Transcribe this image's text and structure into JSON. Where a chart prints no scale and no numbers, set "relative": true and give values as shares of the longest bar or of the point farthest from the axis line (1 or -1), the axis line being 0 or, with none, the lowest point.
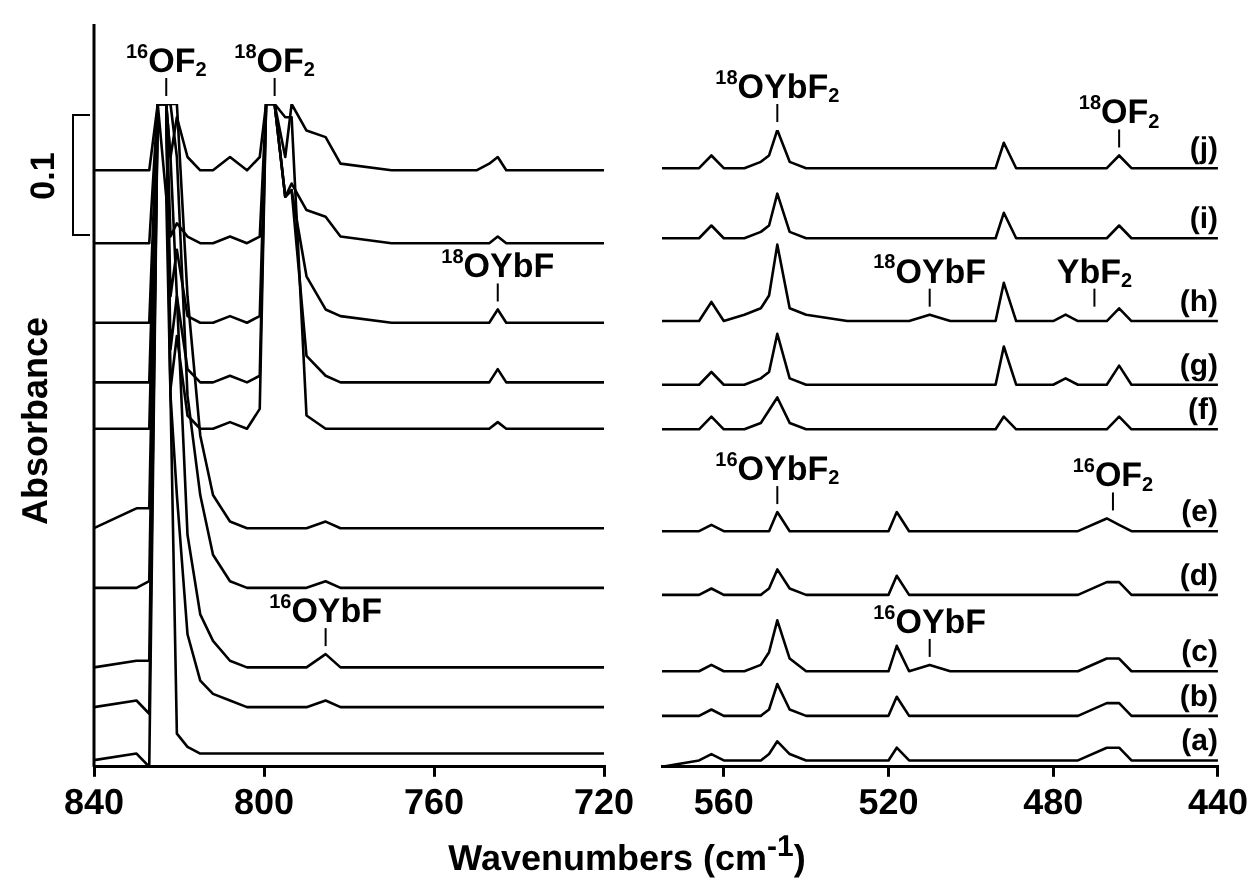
{
  "chart_data": [
    {
      "type": "line",
      "relative": true,
      "ylabel": "Absorbance",
      "xlabel": "Wavenumbers (cm$^{-1}$)",
      "xlim": [
        840,
        720
      ],
      "xticks": [
        840,
        800,
        760,
        720
      ],
      "annotations": [
        "0.1",
        {
          "text": "$^{16}$OF$_{2}$",
          "x": 823,
          "y": 1
        },
        {
          "text": "$^{18}$OF$_{2}$",
          "x": 797.5,
          "y": 1
        },
        {
          "text": "$^{18}$OYbF",
          "x": 745,
          "y": 0.69
        },
        {
          "text": "$^{16}$OYbF",
          "x": 785.5,
          "y": 0.17
        }
      ],
      "x": [
        840,
        830,
        827,
        825,
        823,
        822,
        820.5,
        818,
        815,
        812,
        808,
        804,
        801,
        799.5,
        797.5,
        795,
        793.5,
        790,
        785.5,
        782,
        770,
        760,
        750,
        747,
        745,
        743,
        720
      ],
      "series": [
        {
          "color": "#000000",
          "values": [
            0.9,
            0.9,
            0.9,
            1,
            1,
            0.92,
            0.98,
            0.92,
            0.9,
            0.9,
            0.92,
            0.9,
            0.92,
            1,
            1,
            0.92,
            1,
            0.96,
            0.95,
            0.91,
            0.9,
            0.9,
            0.9,
            0.91,
            0.92,
            0.9,
            0.9
          ]
        },
        {
          "color": "#000000",
          "values": [
            0.79,
            0.79,
            0.79,
            1,
            1,
            0.8,
            0.82,
            0.8,
            0.79,
            0.79,
            0.8,
            0.79,
            0.8,
            1,
            1,
            0.86,
            0.88,
            0.84,
            0.83,
            0.8,
            0.79,
            0.79,
            0.79,
            0.79,
            0.8,
            0.79,
            0.79
          ]
        },
        {
          "color": "#000000",
          "values": [
            0.67,
            0.67,
            0.67,
            1,
            1,
            0.71,
            0.78,
            0.68,
            0.67,
            0.67,
            0.68,
            0.67,
            0.68,
            1,
            1,
            0.86,
            0.87,
            0.74,
            0.69,
            0.68,
            0.67,
            0.67,
            0.67,
            0.67,
            0.69,
            0.67,
            0.67
          ]
        },
        {
          "color": "#000000",
          "values": [
            0.58,
            0.58,
            0.58,
            1,
            1,
            0.63,
            0.71,
            0.6,
            0.58,
            0.58,
            0.59,
            0.58,
            0.59,
            1,
            1,
            0.86,
            0.87,
            0.62,
            0.59,
            0.58,
            0.58,
            0.58,
            0.58,
            0.58,
            0.6,
            0.58,
            0.58
          ]
        },
        {
          "color": "#000000",
          "values": [
            0.51,
            0.51,
            0.51,
            1,
            1,
            0.57,
            0.65,
            0.53,
            0.51,
            0.51,
            0.52,
            0.51,
            0.54,
            1,
            1,
            0.98,
            0.98,
            0.53,
            0.51,
            0.51,
            0.51,
            0.51,
            0.51,
            0.51,
            0.52,
            0.51,
            0.51
          ]
        },
        {
          "color": "#000000",
          "values": [
            0.36,
            0.39,
            0.39,
            1,
            1,
            1,
            1,
            0.71,
            0.5,
            0.41,
            0.37,
            0.36,
            0.36,
            0.36,
            0.36,
            0.36,
            0.36,
            0.36,
            0.37,
            0.36,
            0.36,
            0.36,
            0.36,
            0.36,
            0.36,
            0.36,
            0.36
          ]
        },
        {
          "color": "#000000",
          "values": [
            0.27,
            0.27,
            0.28,
            1,
            1,
            1,
            0.92,
            0.56,
            0.41,
            0.32,
            0.28,
            0.27,
            0.27,
            0.27,
            0.27,
            0.27,
            0.27,
            0.27,
            0.28,
            0.27,
            0.27,
            0.27,
            0.27,
            0.27,
            0.27,
            0.27,
            0.27
          ]
        },
        {
          "color": "#000000",
          "values": [
            0.15,
            0.16,
            0.16,
            1,
            1,
            0.92,
            0.71,
            0.35,
            0.23,
            0.19,
            0.16,
            0.15,
            0.15,
            0.15,
            0.15,
            0.15,
            0.15,
            0.15,
            0.17,
            0.15,
            0.15,
            0.15,
            0.15,
            0.15,
            0.15,
            0.15,
            0.15
          ]
        },
        {
          "color": "#000000",
          "values": [
            0.09,
            0.1,
            0.08,
            1,
            0.86,
            0.56,
            0.41,
            0.2,
            0.13,
            0.11,
            0.1,
            0.09,
            0.09,
            0.09,
            0.09,
            0.09,
            0.09,
            0.09,
            0.1,
            0.09,
            0.09,
            0.09,
            0.09,
            0.09,
            0.09,
            0.09,
            0.09
          ]
        },
        {
          "color": "#000000",
          "values": [
            0.01,
            0.02,
            0,
            1,
            1,
            0.56,
            0.05,
            0.03,
            0.02,
            0.02,
            0.02,
            0.02,
            0.02,
            0.02,
            0.02,
            0.02,
            0.02,
            0.02,
            0.02,
            0.02,
            0.02,
            0.02,
            0.02,
            0.02,
            0.02,
            0.02,
            0.02
          ]
        }
      ]
    },
    {
      "type": "line",
      "relative": true,
      "legend": "right",
      "xlim": [
        575,
        440
      ],
      "xticks": [
        560,
        520,
        480,
        440
      ],
      "annotations": [
        {
          "text": "$^{18}$OYbF$_{2}$",
          "x": 547,
          "y": 1
        },
        {
          "text": "$^{18}$OF$_{2}$",
          "x": 464,
          "y": 0.96
        },
        {
          "text": "$^{18}$OYbF",
          "x": 510,
          "y": 0.71
        },
        {
          "text": "YbF$_{2}$",
          "x": 470,
          "y": 0.71
        },
        {
          "text": "$^{16}$OYbF$_{2}$",
          "x": 547,
          "y": 0.4
        },
        {
          "text": "$^{16}$OF$_{2}$",
          "x": 465.5,
          "y": 0.39
        },
        {
          "text": "$^{16}$OYbF",
          "x": 510,
          "y": 0.16
        }
      ],
      "x": [
        575,
        566,
        563,
        560,
        555,
        551,
        549,
        547,
        544,
        540,
        530,
        520,
        518,
        515,
        510,
        505,
        494,
        492,
        489,
        480,
        477,
        474,
        467,
        464,
        461,
        450,
        440
      ],
      "series": [
        {
          "name": "(j)",
          "color": "#000000",
          "values": [
            0.94,
            0.94,
            0.96,
            0.94,
            0.94,
            0.95,
            0.96,
            1.0,
            0.95,
            0.94,
            0.94,
            0.94,
            0.94,
            0.94,
            0.94,
            0.94,
            0.94,
            0.98,
            0.94,
            0.94,
            0.94,
            0.94,
            0.94,
            0.96,
            0.94,
            0.94,
            0.94
          ]
        },
        {
          "name": "(i)",
          "color": "#000000",
          "values": [
            0.83,
            0.83,
            0.85,
            0.83,
            0.83,
            0.84,
            0.85,
            0.9,
            0.84,
            0.83,
            0.83,
            0.83,
            0.83,
            0.83,
            0.83,
            0.83,
            0.83,
            0.87,
            0.83,
            0.83,
            0.83,
            0.83,
            0.83,
            0.85,
            0.83,
            0.83,
            0.83
          ]
        },
        {
          "name": "(h)",
          "color": "#000000",
          "values": [
            0.7,
            0.7,
            0.73,
            0.7,
            0.71,
            0.72,
            0.74,
            0.82,
            0.72,
            0.71,
            0.7,
            0.7,
            0.7,
            0.7,
            0.71,
            0.7,
            0.7,
            0.76,
            0.7,
            0.7,
            0.71,
            0.7,
            0.7,
            0.72,
            0.7,
            0.7,
            0.7
          ]
        },
        {
          "name": "(g)",
          "color": "#000000",
          "values": [
            0.6,
            0.6,
            0.62,
            0.6,
            0.6,
            0.61,
            0.62,
            0.68,
            0.61,
            0.6,
            0.6,
            0.6,
            0.6,
            0.6,
            0.6,
            0.6,
            0.6,
            0.66,
            0.6,
            0.6,
            0.61,
            0.6,
            0.6,
            0.63,
            0.6,
            0.6,
            0.6
          ]
        },
        {
          "name": "(f)",
          "color": "#000000",
          "values": [
            0.53,
            0.53,
            0.55,
            0.53,
            0.53,
            0.54,
            0.56,
            0.58,
            0.54,
            0.53,
            0.53,
            0.53,
            0.53,
            0.53,
            0.53,
            0.53,
            0.53,
            0.55,
            0.53,
            0.53,
            0.53,
            0.53,
            0.53,
            0.55,
            0.53,
            0.53,
            0.53
          ]
        },
        {
          "name": "(e)",
          "color": "#000000",
          "values": [
            0.37,
            0.37,
            0.38,
            0.37,
            0.37,
            0.37,
            0.37,
            0.4,
            0.37,
            0.37,
            0.37,
            0.37,
            0.4,
            0.37,
            0.37,
            0.37,
            0.37,
            0.37,
            0.37,
            0.37,
            0.37,
            0.37,
            0.39,
            0.38,
            0.37,
            0.37,
            0.37
          ]
        },
        {
          "name": "(d)",
          "color": "#000000",
          "values": [
            0.27,
            0.27,
            0.28,
            0.27,
            0.27,
            0.27,
            0.28,
            0.31,
            0.28,
            0.27,
            0.27,
            0.27,
            0.3,
            0.27,
            0.27,
            0.27,
            0.27,
            0.27,
            0.27,
            0.27,
            0.27,
            0.27,
            0.29,
            0.29,
            0.27,
            0.27,
            0.27
          ]
        },
        {
          "name": "(c)",
          "color": "#000000",
          "values": [
            0.15,
            0.15,
            0.16,
            0.15,
            0.15,
            0.16,
            0.18,
            0.23,
            0.17,
            0.15,
            0.15,
            0.15,
            0.19,
            0.15,
            0.16,
            0.15,
            0.15,
            0.15,
            0.15,
            0.15,
            0.15,
            0.15,
            0.17,
            0.17,
            0.15,
            0.15,
            0.15
          ]
        },
        {
          "name": "(b)",
          "color": "#000000",
          "values": [
            0.08,
            0.08,
            0.09,
            0.08,
            0.08,
            0.08,
            0.09,
            0.13,
            0.09,
            0.08,
            0.08,
            0.08,
            0.11,
            0.08,
            0.08,
            0.08,
            0.08,
            0.08,
            0.08,
            0.08,
            0.08,
            0.08,
            0.1,
            0.1,
            0.08,
            0.08,
            0.08
          ]
        },
        {
          "name": "(a)",
          "color": "#000000",
          "values": [
            0,
            0.01,
            0.02,
            0.01,
            0.01,
            0.01,
            0.02,
            0.04,
            0.02,
            0.01,
            0.01,
            0.01,
            0.03,
            0.01,
            0.01,
            0.01,
            0.01,
            0.01,
            0.01,
            0.01,
            0.01,
            0.01,
            0.03,
            0.03,
            0.01,
            0.01,
            0.01
          ]
        }
      ]
    }
  ]
}
